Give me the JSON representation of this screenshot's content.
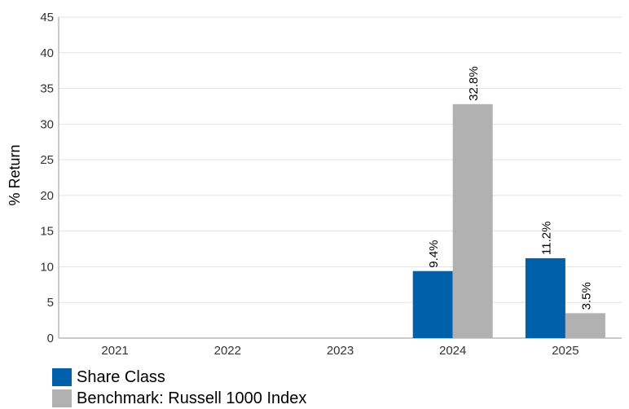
{
  "chart_data": {
    "type": "bar",
    "title": "",
    "xlabel": "",
    "ylabel": "% Return",
    "categories": [
      "2021",
      "2022",
      "2023",
      "2024",
      "2025"
    ],
    "series": [
      {
        "name": "Share Class",
        "color": "#0060a9",
        "values": [
          null,
          null,
          null,
          9.4,
          11.2
        ],
        "labels": [
          "",
          "",
          "",
          "9.4%",
          "11.2%"
        ]
      },
      {
        "name": "Benchmark: Russell 1000 Index",
        "color": "#b1b1b1",
        "values": [
          null,
          null,
          null,
          32.8,
          3.5
        ],
        "labels": [
          "",
          "",
          "",
          "32.8%",
          "3.5%"
        ]
      }
    ],
    "ylim": [
      0,
      45
    ],
    "yticks": [
      "0",
      "5",
      "10",
      "15",
      "20",
      "25",
      "30",
      "35",
      "40",
      "45"
    ],
    "grid": true,
    "legend_position": "bottom-left"
  }
}
